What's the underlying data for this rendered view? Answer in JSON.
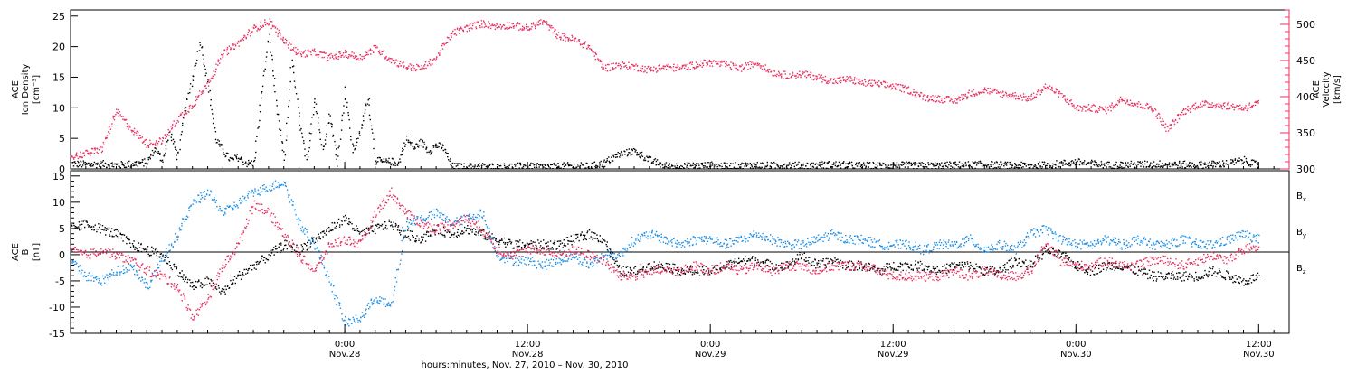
{
  "colors": {
    "density": "#000000",
    "velocity": "#e8305f",
    "bx": "#000000",
    "by": "#1a8ee6",
    "bz": "#e8305f"
  },
  "x_axis": {
    "label": "hours:minutes, Nov. 27, 2010 – Nov. 30, 2010",
    "range_hours": [
      0,
      80
    ],
    "ticks": [
      {
        "h": 18,
        "time": "0:00",
        "date": "Nov.28"
      },
      {
        "h": 30,
        "time": "12:00",
        "date": "Nov.28"
      },
      {
        "h": 42,
        "time": "0:00",
        "date": "Nov.29"
      },
      {
        "h": 54,
        "time": "12:00",
        "date": "Nov.29"
      },
      {
        "h": 66,
        "time": "0:00",
        "date": "Nov.30"
      },
      {
        "h": 78,
        "time": "12:00",
        "date": "Nov.30"
      }
    ]
  },
  "chart_data": [
    {
      "type": "scatter",
      "panel": "ion density / velocity",
      "ylabel_left": [
        "ACE",
        "Ion Density",
        "[cm⁻³]"
      ],
      "ylabel_right": [
        "ACE",
        "Velocity",
        "[km/s]"
      ],
      "ylim_left": [
        0,
        26
      ],
      "yticks_left": [
        0,
        5,
        10,
        15,
        20,
        25
      ],
      "ylim_right": [
        300,
        520
      ],
      "yticks_right": [
        300,
        350,
        400,
        450,
        500
      ],
      "series": [
        {
          "axis": "left",
          "x": [
            0,
            1,
            2,
            3,
            4,
            5,
            5.5,
            6,
            6.5,
            7,
            7.5,
            8,
            8.5,
            9,
            9.5,
            10,
            10.5,
            11,
            11.5,
            12,
            12.5,
            13,
            13.5,
            14,
            14.5,
            15,
            15.5,
            16,
            16.5,
            17,
            17.5,
            18,
            18.5,
            19,
            19.5,
            20,
            20.5,
            21,
            21.5,
            22,
            22.5,
            23,
            23.5,
            24,
            24.5,
            25,
            26,
            27,
            28,
            29,
            30,
            31,
            32,
            33,
            34,
            35,
            36,
            37,
            38,
            39,
            40,
            41,
            42,
            43,
            44,
            45,
            46,
            47,
            48,
            50,
            52,
            54,
            56,
            58,
            60,
            62,
            64,
            66,
            68,
            70,
            72,
            74,
            76,
            77,
            78
          ],
          "y": [
            1.0,
            0.8,
            0.9,
            0.7,
            0.9,
            1.2,
            3.5,
            1.5,
            6.0,
            2.0,
            10.0,
            15.0,
            21.0,
            14.0,
            5.0,
            3.0,
            1.5,
            2.0,
            1.0,
            1.0,
            12.0,
            22.0,
            10.0,
            1.5,
            18.0,
            8.0,
            1.0,
            12.0,
            3.0,
            9.0,
            1.0,
            13.0,
            3.0,
            6.0,
            12.0,
            1.5,
            1.2,
            1.3,
            1.0,
            5.0,
            3.5,
            4.5,
            3.0,
            4.0,
            3.5,
            0.5,
            0.4,
            0.5,
            0.4,
            0.5,
            0.5,
            0.4,
            0.5,
            0.6,
            0.5,
            1.0,
            2.5,
            3.0,
            1.5,
            0.6,
            0.5,
            0.6,
            0.7,
            0.5,
            0.6,
            0.7,
            0.6,
            0.8,
            0.6,
            0.8,
            0.6,
            0.7,
            0.6,
            0.7,
            0.8,
            0.6,
            0.7,
            1.2,
            0.7,
            0.8,
            0.9,
            0.7,
            1.0,
            1.5,
            0.6
          ]
        },
        {
          "axis": "right",
          "x": [
            0,
            1,
            2,
            3,
            4,
            5,
            6,
            7,
            8,
            9,
            10,
            11,
            12,
            13,
            14,
            15,
            16,
            17,
            18,
            19,
            20,
            21,
            22,
            23,
            24,
            25,
            26,
            27,
            28,
            29,
            30,
            31,
            32,
            33,
            34,
            35,
            36,
            37,
            38,
            39,
            40,
            41,
            42,
            43,
            44,
            45,
            46,
            47,
            48,
            49,
            50,
            51,
            52,
            53,
            54,
            55,
            56,
            57,
            58,
            59,
            60,
            61,
            62,
            63,
            64,
            65,
            66,
            67,
            68,
            69,
            70,
            71,
            72,
            73,
            74,
            75,
            76,
            77,
            78
          ],
          "y": [
            318,
            322,
            328,
            380,
            355,
            335,
            340,
            370,
            390,
            420,
            460,
            475,
            495,
            505,
            478,
            460,
            462,
            455,
            460,
            455,
            468,
            452,
            442,
            440,
            455,
            488,
            496,
            502,
            498,
            500,
            495,
            505,
            485,
            480,
            470,
            440,
            445,
            442,
            438,
            442,
            440,
            445,
            448,
            445,
            440,
            448,
            435,
            430,
            432,
            428,
            422,
            425,
            420,
            418,
            415,
            410,
            400,
            398,
            395,
            405,
            410,
            405,
            402,
            398,
            415,
            403,
            385,
            385,
            382,
            398,
            390,
            385,
            355,
            380,
            390,
            390,
            388,
            385,
            392
          ]
        }
      ]
    },
    {
      "type": "scatter",
      "panel": "magnetic field",
      "ylabel_left": [
        "ACE",
        "B",
        "[nT]"
      ],
      "ylim": [
        -15,
        16
      ],
      "yticks": [
        -15,
        -10,
        -5,
        0,
        5,
        10,
        15
      ],
      "series": [
        {
          "name": "B",
          "sub": "x",
          "x": [
            0,
            1,
            2,
            3,
            4,
            5,
            6,
            7,
            8,
            9,
            10,
            11,
            12,
            13,
            14,
            15,
            16,
            17,
            18,
            19,
            20,
            21,
            22,
            23,
            24,
            25,
            26,
            27,
            28,
            29,
            30,
            31,
            32,
            33,
            34,
            35,
            36,
            37,
            38,
            39,
            40,
            41,
            42,
            43,
            44,
            45,
            46,
            47,
            48,
            49,
            50,
            51,
            52,
            53,
            54,
            55,
            56,
            57,
            58,
            59,
            60,
            61,
            62,
            63,
            64,
            65,
            66,
            67,
            68,
            69,
            70,
            71,
            72,
            73,
            74,
            75,
            76,
            77,
            78
          ],
          "y": [
            5,
            6,
            5,
            4,
            2,
            1,
            0,
            -3,
            -6,
            -5,
            -7,
            -4,
            -2,
            0,
            2,
            1,
            3,
            5,
            7,
            4,
            5,
            6,
            4,
            3,
            5,
            4,
            5,
            4,
            3,
            2,
            2,
            2,
            2,
            3,
            4,
            3,
            -3,
            -3,
            -2,
            -2,
            -3,
            -3,
            -3,
            -2,
            -1,
            -1,
            -2,
            -2,
            0,
            -2,
            -1,
            -2,
            -2,
            -3,
            -2,
            -2,
            -2,
            -3,
            -2,
            -2,
            -3,
            -3,
            -1,
            -2,
            1,
            0,
            -2,
            -3,
            -2,
            -2,
            -3,
            -4,
            -4,
            -4,
            -4,
            -3,
            -4,
            -5,
            -4
          ]
        },
        {
          "name": "B",
          "sub": "y",
          "x": [
            0,
            1,
            2,
            3,
            4,
            5,
            6,
            7,
            8,
            9,
            10,
            11,
            12,
            13,
            14,
            15,
            16,
            17,
            18,
            19,
            20,
            21,
            22,
            23,
            24,
            25,
            26,
            27,
            28,
            29,
            30,
            31,
            32,
            33,
            34,
            35,
            36,
            37,
            38,
            39,
            40,
            41,
            42,
            43,
            44,
            45,
            46,
            47,
            48,
            49,
            50,
            51,
            52,
            53,
            54,
            55,
            56,
            57,
            58,
            59,
            60,
            61,
            62,
            63,
            64,
            65,
            66,
            67,
            68,
            69,
            70,
            71,
            72,
            73,
            74,
            75,
            76,
            77,
            78
          ],
          "y": [
            -1,
            -4,
            -5,
            -3,
            -2,
            -6,
            -1,
            4,
            10,
            12,
            8,
            10,
            12,
            13,
            14,
            6,
            2,
            -5,
            -13,
            -12,
            -8,
            -10,
            6,
            7,
            8,
            6,
            7,
            8,
            0,
            -1,
            -1,
            -2,
            -1,
            0,
            -2,
            0,
            0,
            3,
            4,
            3,
            2,
            3,
            3,
            2,
            3,
            4,
            3,
            2,
            2,
            3,
            4,
            3,
            3,
            2,
            2,
            2,
            1,
            2,
            2,
            3,
            1,
            2,
            1,
            4,
            5,
            3,
            2,
            2,
            3,
            2,
            3,
            2,
            2,
            3,
            2,
            2,
            3,
            4,
            3
          ]
        },
        {
          "name": "B",
          "sub": "z",
          "x": [
            0,
            1,
            2,
            3,
            4,
            5,
            6,
            7,
            8,
            9,
            10,
            11,
            12,
            13,
            14,
            15,
            16,
            17,
            18,
            19,
            20,
            21,
            22,
            23,
            24,
            25,
            26,
            27,
            28,
            29,
            30,
            31,
            32,
            33,
            34,
            35,
            36,
            37,
            38,
            39,
            40,
            41,
            42,
            43,
            44,
            45,
            46,
            47,
            48,
            49,
            50,
            51,
            52,
            53,
            54,
            55,
            56,
            57,
            58,
            59,
            60,
            61,
            62,
            63,
            64,
            65,
            66,
            67,
            68,
            69,
            70,
            71,
            72,
            73,
            74,
            75,
            76,
            77,
            78
          ],
          "y": [
            1,
            0,
            1,
            0,
            -1,
            -3,
            -4,
            -6,
            -12,
            -8,
            -2,
            2,
            10,
            8,
            4,
            0,
            -3,
            2,
            3,
            2,
            8,
            12,
            8,
            6,
            5,
            6,
            7,
            5,
            1,
            0,
            1,
            1,
            0,
            1,
            0,
            -1,
            -4,
            -4,
            -3,
            -3,
            -3,
            -2,
            -3,
            -2,
            -3,
            -2,
            -3,
            -2,
            -2,
            -3,
            -2,
            -2,
            -2,
            -3,
            -4,
            -4,
            -4,
            -4,
            -3,
            -4,
            -3,
            -4,
            -4,
            -3,
            2,
            -1,
            -2,
            -2,
            -1,
            -2,
            -2,
            -1,
            -1,
            -2,
            -1,
            0,
            -1,
            1,
            2
          ]
        }
      ]
    }
  ]
}
